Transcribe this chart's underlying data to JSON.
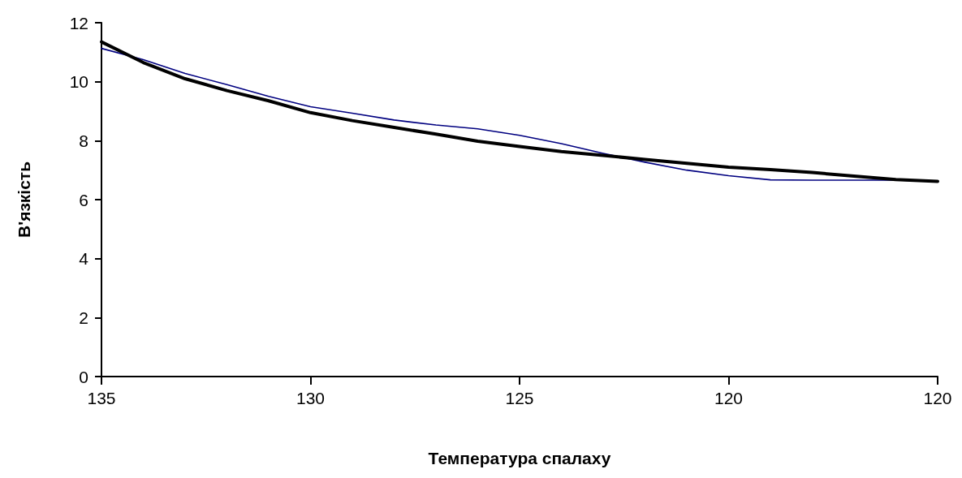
{
  "chart_data": {
    "type": "line",
    "xlabel": "Температура спалаху",
    "ylabel": "В'язкість",
    "categories": [
      "135",
      null,
      null,
      null,
      null,
      "130",
      null,
      null,
      null,
      null,
      "125",
      null,
      null,
      null,
      null,
      "120",
      null,
      null,
      null,
      null,
      "120"
    ],
    "ylim": [
      0,
      12
    ],
    "yticks": [
      0,
      2,
      4,
      6,
      8,
      10,
      12
    ],
    "grid": false,
    "marker": "none",
    "line_style": "solid",
    "series": [
      {
        "color": "#000000",
        "values": [
          11.35,
          10.65,
          10.1,
          9.7,
          9.35,
          8.95,
          8.68,
          8.45,
          8.22,
          7.98,
          7.8,
          7.63,
          7.5,
          7.36,
          7.23,
          7.1,
          7.02,
          6.92,
          6.8,
          6.68,
          6.62
        ]
      },
      {
        "color": "#000080",
        "values": [
          11.13,
          10.75,
          10.28,
          9.9,
          9.5,
          9.15,
          8.93,
          8.7,
          8.53,
          8.4,
          8.18,
          7.9,
          7.57,
          7.27,
          7.0,
          6.81,
          6.67,
          6.66,
          6.66,
          6.66,
          6.62
        ]
      }
    ]
  }
}
